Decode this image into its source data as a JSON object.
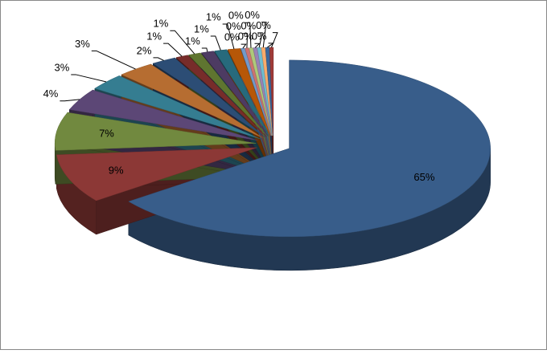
{
  "chart_data": {
    "type": "pie",
    "3d": true,
    "explode": true,
    "values": [
      65,
      9,
      7,
      4,
      3,
      3,
      2,
      1,
      1,
      1,
      1,
      1,
      0.3,
      0.3,
      0.3,
      0.3,
      0.3,
      0.3,
      0.3,
      0.3
    ],
    "value_labels": [
      "65%",
      "9%",
      "7%",
      "4%",
      "3%",
      "3%",
      "2%",
      "1%",
      "1%",
      "1%",
      "1%",
      "1%",
      "0%",
      "0%",
      "0%",
      "0%",
      "0%",
      "0%",
      "0%",
      "0%"
    ],
    "colors": [
      "#385D8A",
      "#8C3836",
      "#71893F",
      "#5C4776",
      "#357D91",
      "#B66D31",
      "#2C4D75",
      "#772C2A",
      "#5F7530",
      "#4D3B62",
      "#276A7C",
      "#B65708",
      "#729ACA",
      "#CD7371",
      "#AFC97A",
      "#9983B5",
      "#6FBDD1",
      "#F9AB6B",
      "#3A679C",
      "#9F3B38"
    ]
  }
}
